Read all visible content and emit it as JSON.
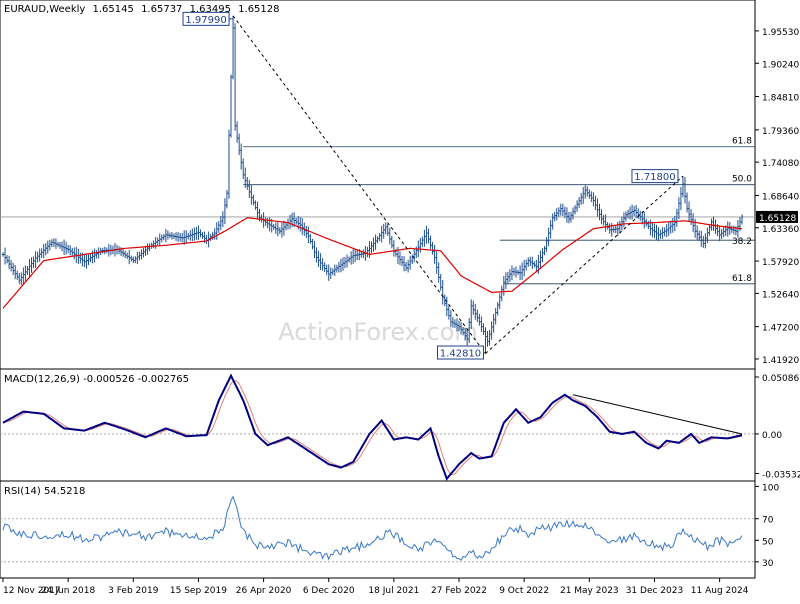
{
  "chart_data": [
    {
      "type": "line",
      "panel": "price",
      "title": "EURAUD,Weekly",
      "ohlc": {
        "open": "1.65145",
        "high": "1.65737",
        "low": "1.63495",
        "close": "1.65128"
      },
      "current_price_label": "1.65128",
      "watermark": "ActionForex.com",
      "ylim": [
        1.4028,
        2.0058
      ],
      "y_ticks": [
        "1.95530",
        "1.90240",
        "1.84810",
        "1.79360",
        "1.74080",
        "1.68640",
        "1.63360",
        "1.57920",
        "1.52640",
        "1.47200",
        "1.41920"
      ],
      "x_ticks": [
        "12 Nov 2017",
        "24 Jun 2018",
        "3 Feb 2019",
        "15 Sep 2019",
        "26 Apr 2020",
        "6 Dec 2020",
        "18 Jul 2021",
        "27 Feb 2022",
        "9 Oct 2022",
        "21 May 2023",
        "31 Dec 2023",
        "11 Aug 2024"
      ],
      "x_tick_index": [
        0,
        32,
        64,
        96,
        128,
        160,
        192,
        224,
        256,
        288,
        320,
        352
      ],
      "weeks": 364,
      "anchors": [
        [
          0,
          1.59
        ],
        [
          8,
          1.548
        ],
        [
          16,
          1.584
        ],
        [
          24,
          1.61
        ],
        [
          32,
          1.598
        ],
        [
          40,
          1.578
        ],
        [
          48,
          1.596
        ],
        [
          56,
          1.598
        ],
        [
          64,
          1.58
        ],
        [
          72,
          1.603
        ],
        [
          80,
          1.622
        ],
        [
          88,
          1.617
        ],
        [
          96,
          1.626
        ],
        [
          100,
          1.613
        ],
        [
          104,
          1.625
        ],
        [
          108,
          1.651
        ],
        [
          110,
          1.69
        ],
        [
          112,
          1.88
        ],
        [
          113,
          1.96
        ],
        [
          114,
          1.8
        ],
        [
          118,
          1.72
        ],
        [
          122,
          1.683
        ],
        [
          126,
          1.65
        ],
        [
          130,
          1.64
        ],
        [
          136,
          1.628
        ],
        [
          142,
          1.648
        ],
        [
          146,
          1.638
        ],
        [
          150,
          1.62
        ],
        [
          154,
          1.585
        ],
        [
          160,
          1.558
        ],
        [
          166,
          1.573
        ],
        [
          172,
          1.588
        ],
        [
          178,
          1.592
        ],
        [
          184,
          1.616
        ],
        [
          188,
          1.635
        ],
        [
          192,
          1.595
        ],
        [
          198,
          1.568
        ],
        [
          204,
          1.602
        ],
        [
          208,
          1.625
        ],
        [
          212,
          1.585
        ],
        [
          216,
          1.52
        ],
        [
          220,
          1.48
        ],
        [
          224,
          1.472
        ],
        [
          228,
          1.452
        ],
        [
          230,
          1.506
        ],
        [
          234,
          1.48
        ],
        [
          238,
          1.448
        ],
        [
          242,
          1.495
        ],
        [
          246,
          1.545
        ],
        [
          250,
          1.562
        ],
        [
          254,
          1.56
        ],
        [
          258,
          1.58
        ],
        [
          262,
          1.57
        ],
        [
          266,
          1.6
        ],
        [
          270,
          1.65
        ],
        [
          274,
          1.665
        ],
        [
          278,
          1.648
        ],
        [
          282,
          1.672
        ],
        [
          286,
          1.695
        ],
        [
          290,
          1.678
        ],
        [
          294,
          1.648
        ],
        [
          298,
          1.63
        ],
        [
          302,
          1.632
        ],
        [
          306,
          1.655
        ],
        [
          310,
          1.662
        ],
        [
          314,
          1.648
        ],
        [
          318,
          1.632
        ],
        [
          322,
          1.622
        ],
        [
          326,
          1.63
        ],
        [
          330,
          1.642
        ],
        [
          334,
          1.705
        ],
        [
          336,
          1.665
        ],
        [
          340,
          1.628
        ],
        [
          344,
          1.608
        ],
        [
          348,
          1.643
        ],
        [
          352,
          1.622
        ],
        [
          356,
          1.633
        ],
        [
          360,
          1.628
        ],
        [
          363,
          1.651
        ]
      ],
      "ma_anchors": [
        [
          0,
          1.502
        ],
        [
          20,
          1.58
        ],
        [
          40,
          1.59
        ],
        [
          60,
          1.6
        ],
        [
          80,
          1.605
        ],
        [
          100,
          1.612
        ],
        [
          110,
          1.63
        ],
        [
          120,
          1.65
        ],
        [
          140,
          1.642
        ],
        [
          160,
          1.615
        ],
        [
          180,
          1.59
        ],
        [
          200,
          1.6
        ],
        [
          215,
          1.596
        ],
        [
          225,
          1.555
        ],
        [
          240,
          1.528
        ],
        [
          250,
          1.53
        ],
        [
          262,
          1.562
        ],
        [
          275,
          1.598
        ],
        [
          290,
          1.632
        ],
        [
          305,
          1.64
        ],
        [
          320,
          1.642
        ],
        [
          335,
          1.645
        ],
        [
          350,
          1.637
        ],
        [
          363,
          1.632
        ]
      ],
      "peak_label": "1.97990",
      "trough_label": "1.42810",
      "swing_label": "1.71800",
      "fib_61_8_upper": {
        "label": "61.8",
        "value": 1.766
      },
      "fib_50_0": {
        "label": "50.0",
        "value": 1.704
      },
      "fib_38_2": {
        "label": "38.2",
        "value": 1.6133
      },
      "fib_61_8_lower": {
        "label": "61.8",
        "value": 1.542
      },
      "price_level_line": 1.6513,
      "peak_point": [
        113,
        1.9799
      ],
      "trough_point": [
        237,
        1.4281
      ],
      "swing_point": [
        334,
        1.718
      ]
    },
    {
      "type": "line",
      "panel": "macd",
      "title": "MACD(12,26,9) -0.000526 -0.002765",
      "ylim": [
        -0.042,
        0.058
      ],
      "y_ticks": [
        "0.050863",
        "0.00",
        "-0.035322"
      ],
      "y_tick_values": [
        0.050863,
        0.0,
        -0.035322
      ],
      "anchors": [
        [
          0,
          0.01
        ],
        [
          10,
          0.02
        ],
        [
          20,
          0.018
        ],
        [
          30,
          0.005
        ],
        [
          40,
          0.003
        ],
        [
          50,
          0.01
        ],
        [
          60,
          0.004
        ],
        [
          70,
          -0.003
        ],
        [
          80,
          0.005
        ],
        [
          90,
          -0.002
        ],
        [
          100,
          -0.001
        ],
        [
          106,
          0.03
        ],
        [
          112,
          0.052
        ],
        [
          118,
          0.03
        ],
        [
          124,
          0.0
        ],
        [
          130,
          -0.01
        ],
        [
          140,
          -0.003
        ],
        [
          150,
          -0.015
        ],
        [
          160,
          -0.027
        ],
        [
          166,
          -0.03
        ],
        [
          172,
          -0.025
        ],
        [
          180,
          0.0
        ],
        [
          186,
          0.012
        ],
        [
          192,
          -0.005
        ],
        [
          198,
          -0.003
        ],
        [
          204,
          -0.005
        ],
        [
          210,
          0.005
        ],
        [
          214,
          -0.02
        ],
        [
          218,
          -0.04
        ],
        [
          224,
          -0.027
        ],
        [
          230,
          -0.017
        ],
        [
          234,
          -0.022
        ],
        [
          240,
          -0.02
        ],
        [
          246,
          0.01
        ],
        [
          252,
          0.022
        ],
        [
          258,
          0.01
        ],
        [
          264,
          0.015
        ],
        [
          270,
          0.028
        ],
        [
          276,
          0.035
        ],
        [
          280,
          0.03
        ],
        [
          286,
          0.025
        ],
        [
          292,
          0.015
        ],
        [
          298,
          0.002
        ],
        [
          304,
          0.0
        ],
        [
          310,
          0.002
        ],
        [
          316,
          -0.008
        ],
        [
          322,
          -0.013
        ],
        [
          326,
          -0.006
        ],
        [
          332,
          -0.008
        ],
        [
          338,
          0.0
        ],
        [
          342,
          -0.008
        ],
        [
          348,
          -0.003
        ],
        [
          356,
          -0.004
        ],
        [
          363,
          -0.001
        ]
      ],
      "signal_lag": 4,
      "trendline": [
        [
          280,
          0.035
        ],
        [
          363,
          0.0
        ]
      ]
    },
    {
      "type": "line",
      "panel": "rsi",
      "title": "RSI(14) 54.5218",
      "ylim": [
        15,
        105
      ],
      "y_ticks": [
        "100",
        "70",
        "50",
        "30"
      ],
      "y_tick_values": [
        100,
        70,
        50,
        30
      ],
      "anchors": [
        [
          0,
          62
        ],
        [
          10,
          55
        ],
        [
          20,
          55
        ],
        [
          30,
          56
        ],
        [
          40,
          52
        ],
        [
          50,
          54
        ],
        [
          60,
          58
        ],
        [
          70,
          53
        ],
        [
          80,
          58
        ],
        [
          90,
          54
        ],
        [
          100,
          52
        ],
        [
          108,
          60
        ],
        [
          113,
          90
        ],
        [
          118,
          58
        ],
        [
          124,
          46
        ],
        [
          130,
          45
        ],
        [
          140,
          48
        ],
        [
          150,
          38
        ],
        [
          160,
          34
        ],
        [
          170,
          42
        ],
        [
          180,
          46
        ],
        [
          190,
          58
        ],
        [
          198,
          46
        ],
        [
          206,
          43
        ],
        [
          212,
          52
        ],
        [
          218,
          40
        ],
        [
          224,
          33
        ],
        [
          230,
          38
        ],
        [
          236,
          35
        ],
        [
          240,
          42
        ],
        [
          246,
          55
        ],
        [
          252,
          62
        ],
        [
          258,
          56
        ],
        [
          264,
          60
        ],
        [
          270,
          62
        ],
        [
          276,
          66
        ],
        [
          280,
          64
        ],
        [
          286,
          62
        ],
        [
          292,
          56
        ],
        [
          298,
          50
        ],
        [
          304,
          50
        ],
        [
          310,
          54
        ],
        [
          316,
          48
        ],
        [
          322,
          45
        ],
        [
          328,
          44
        ],
        [
          334,
          60
        ],
        [
          340,
          50
        ],
        [
          346,
          45
        ],
        [
          352,
          50
        ],
        [
          358,
          47
        ],
        [
          363,
          55
        ]
      ]
    }
  ]
}
